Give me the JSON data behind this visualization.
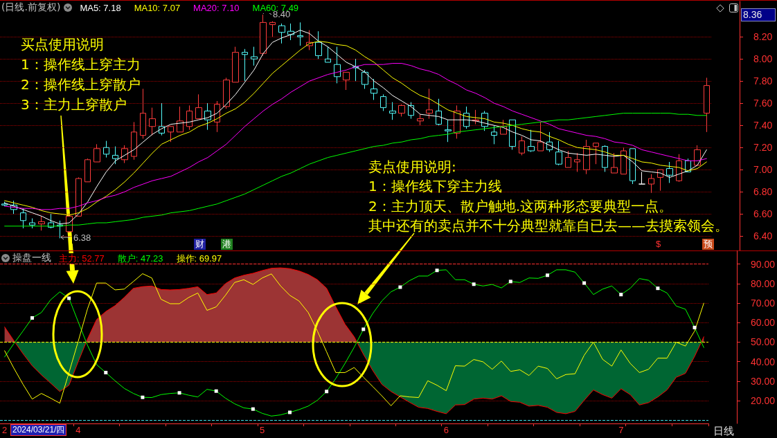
{
  "chart_data": [
    {
      "type": "candlestick",
      "title": "(日线.前复权)",
      "categories": [
        "2",
        null,
        null,
        null,
        null,
        null,
        null,
        null,
        "4",
        null,
        null,
        null,
        null,
        null,
        null,
        null,
        null,
        null,
        null,
        null,
        null,
        null,
        null,
        null,
        null,
        null,
        null,
        null,
        "5",
        null,
        null,
        null,
        null,
        null,
        null,
        null,
        null,
        null,
        null,
        null,
        null,
        null,
        null,
        null,
        null,
        null,
        null,
        null,
        "6",
        null,
        null,
        null,
        null,
        null,
        null,
        null,
        null,
        null,
        null,
        null,
        null,
        null,
        null,
        null,
        null,
        null,
        null,
        "7",
        null,
        null,
        null,
        null,
        null,
        null,
        null,
        null,
        null
      ],
      "ohlc": [
        [
          6.69,
          6.71,
          6.67,
          6.68
        ],
        [
          6.68,
          6.72,
          6.6,
          6.64
        ],
        [
          6.61,
          6.65,
          6.47,
          6.54
        ],
        [
          6.52,
          6.56,
          6.47,
          6.5
        ],
        [
          6.51,
          6.58,
          6.45,
          6.53
        ],
        [
          6.52,
          6.6,
          6.47,
          6.48
        ],
        [
          6.5,
          6.54,
          6.38,
          6.49
        ],
        [
          6.44,
          6.59,
          6.43,
          6.58
        ],
        [
          6.58,
          6.93,
          6.58,
          6.92
        ],
        [
          6.89,
          7.1,
          6.89,
          7.09
        ],
        [
          7.07,
          7.23,
          7.07,
          7.19
        ],
        [
          7.2,
          7.26,
          7.11,
          7.14
        ],
        [
          7.13,
          7.21,
          7.05,
          7.1
        ],
        [
          7.09,
          7.22,
          7.06,
          7.19
        ],
        [
          7.12,
          7.43,
          7.09,
          7.34
        ],
        [
          7.31,
          7.73,
          7.28,
          7.51
        ],
        [
          7.39,
          7.56,
          7.31,
          7.46
        ],
        [
          7.39,
          7.6,
          7.31,
          7.33
        ],
        [
          7.34,
          7.39,
          7.25,
          7.39
        ],
        [
          7.34,
          7.57,
          7.34,
          7.44
        ],
        [
          7.39,
          7.58,
          7.36,
          7.53
        ],
        [
          7.46,
          7.68,
          7.46,
          7.56
        ],
        [
          7.53,
          7.6,
          7.36,
          7.45
        ],
        [
          7.43,
          7.62,
          7.34,
          7.59
        ],
        [
          7.57,
          7.83,
          7.55,
          7.81
        ],
        [
          7.79,
          8.11,
          7.79,
          8.06
        ],
        [
          8.06,
          8.09,
          7.8,
          8.04
        ],
        [
          8.02,
          8.11,
          7.94,
          8.0
        ],
        [
          8.05,
          8.4,
          8.03,
          8.33
        ],
        [
          8.31,
          8.34,
          8.2,
          8.33
        ],
        [
          8.3,
          8.32,
          8.14,
          8.24
        ],
        [
          8.25,
          8.32,
          8.17,
          8.22
        ],
        [
          8.21,
          8.33,
          8.12,
          8.2
        ],
        [
          8.12,
          8.26,
          8.08,
          8.15
        ],
        [
          8.15,
          8.25,
          8.0,
          8.03
        ],
        [
          8.0,
          8.11,
          7.97,
          7.97
        ],
        [
          7.95,
          8.11,
          7.78,
          7.84
        ],
        [
          7.81,
          7.88,
          7.72,
          7.88
        ],
        [
          7.93,
          8.0,
          7.8,
          7.92
        ],
        [
          7.88,
          7.9,
          7.73,
          7.77
        ],
        [
          7.73,
          7.82,
          7.63,
          7.69
        ],
        [
          7.66,
          7.68,
          7.53,
          7.56
        ],
        [
          7.53,
          7.61,
          7.45,
          7.51
        ],
        [
          7.51,
          7.59,
          7.48,
          7.58
        ],
        [
          7.58,
          7.61,
          7.46,
          7.49
        ],
        [
          7.44,
          7.5,
          7.4,
          7.46
        ],
        [
          7.51,
          7.73,
          7.46,
          7.54
        ],
        [
          7.53,
          7.64,
          7.4,
          7.41
        ],
        [
          7.36,
          7.45,
          7.25,
          7.35
        ],
        [
          7.33,
          7.58,
          7.28,
          7.53
        ],
        [
          7.51,
          7.57,
          7.37,
          7.39
        ],
        [
          7.44,
          7.54,
          7.41,
          7.45
        ],
        [
          7.51,
          7.53,
          7.35,
          7.39
        ],
        [
          7.34,
          7.4,
          7.23,
          7.31
        ],
        [
          7.32,
          7.45,
          7.32,
          7.39
        ],
        [
          7.45,
          7.45,
          7.18,
          7.21
        ],
        [
          7.15,
          7.3,
          7.13,
          7.26
        ],
        [
          7.21,
          7.36,
          7.16,
          7.17
        ],
        [
          7.17,
          7.43,
          7.17,
          7.25
        ],
        [
          7.25,
          7.34,
          7.16,
          7.18
        ],
        [
          7.16,
          7.26,
          7.04,
          7.05
        ],
        [
          7.02,
          7.17,
          7.02,
          7.11
        ],
        [
          7.07,
          7.15,
          6.98,
          7.09
        ],
        [
          7.0,
          7.27,
          6.96,
          7.21
        ],
        [
          7.21,
          7.24,
          7.05,
          7.24
        ],
        [
          7.21,
          7.22,
          6.98,
          7.02
        ],
        [
          6.97,
          7.15,
          6.97,
          7.02
        ],
        [
          6.96,
          7.2,
          6.96,
          7.17
        ],
        [
          7.19,
          7.19,
          6.87,
          6.9
        ],
        [
          6.87,
          6.98,
          6.87,
          6.87
        ],
        [
          6.87,
          6.96,
          6.79,
          6.92
        ],
        [
          6.93,
          7.0,
          6.81,
          7.0
        ],
        [
          7.01,
          7.07,
          6.88,
          6.95
        ],
        [
          6.9,
          7.14,
          6.89,
          7.08
        ],
        [
          7.08,
          7.1,
          6.98,
          6.98
        ],
        [
          7.04,
          7.22,
          7.04,
          7.18
        ],
        [
          7.51,
          7.83,
          7.34,
          7.76
        ]
      ],
      "colors": [
        "#54fcfc",
        "#54fcfc",
        "#54fcfc",
        "#54fcfc",
        "#ff3c3c",
        "#54fcfc",
        "#54fcfc",
        "#ff3c3c",
        "#ff3c3c",
        "#ff3c3c",
        "#ff3c3c",
        "#54fcfc",
        "#54fcfc",
        "#ff3c3c",
        "#ff3c3c",
        "#ff3c3c",
        "#ff3c3c",
        "#54fcfc",
        "#ff3c3c",
        "#ff3c3c",
        "#ff3c3c",
        "#ff3c3c",
        "#54fcfc",
        "#ff3c3c",
        "#ff3c3c",
        "#ff3c3c",
        "#54fcfc",
        "#54fcfc",
        "#ff3c3c",
        "#ff3c3c",
        "#54fcfc",
        "#54fcfc",
        "#54fcfc",
        "#ff3c3c",
        "#54fcfc",
        "#54fcfc",
        "#54fcfc",
        "#ff3c3c",
        "#54fcfc",
        "#54fcfc",
        "#54fcfc",
        "#54fcfc",
        "#54fcfc",
        "#ff3c3c",
        "#54fcfc",
        "#ff3c3c",
        "#ff3c3c",
        "#54fcfc",
        "#54fcfc",
        "#ff3c3c",
        "#54fcfc",
        "#ff3c3c",
        "#54fcfc",
        "#54fcfc",
        "#ff3c3c",
        "#54fcfc",
        "#ff3c3c",
        "#54fcfc",
        "#ff3c3c",
        "#54fcfc",
        "#54fcfc",
        "#ff3c3c",
        "#ff3c3c",
        "#ff3c3c",
        "#ff3c3c",
        "#54fcfc",
        "#ff3c3c",
        "#ff3c3c",
        "#54fcfc",
        "#ffffff",
        "#ff3c3c",
        "#ff3c3c",
        "#54fcfc",
        "#ff3c3c",
        "#54fcfc",
        "#ff3c3c",
        "#ff3c3c"
      ],
      "series": [
        {
          "name": "MA5: 7.18",
          "type": "line",
          "color": "#ffffff",
          "values": [
            6.7,
            6.67,
            6.64,
            6.61,
            6.58,
            6.54,
            6.51,
            6.52,
            6.6,
            6.71,
            6.85,
            6.98,
            7.08,
            7.13,
            7.18,
            7.25,
            7.32,
            7.37,
            7.41,
            7.42,
            7.43,
            7.45,
            7.47,
            7.51,
            7.59,
            7.68,
            7.79,
            7.9,
            8.05,
            8.15,
            8.19,
            8.22,
            8.26,
            8.23,
            8.16,
            8.11,
            8.04,
            7.97,
            7.93,
            7.88,
            7.8,
            7.74,
            7.67,
            7.62,
            7.57,
            7.5,
            7.49,
            7.48,
            7.45,
            7.45,
            7.45,
            7.44,
            7.42,
            7.4,
            7.38,
            7.34,
            7.31,
            7.27,
            7.26,
            7.22,
            7.18,
            7.15,
            7.14,
            7.13,
            7.14,
            7.13,
            7.12,
            7.13,
            7.07,
            6.99,
            6.98,
            6.97,
            6.93,
            6.96,
            6.99,
            7.04,
            7.18
          ]
        },
        {
          "name": "MA10: 7.07",
          "type": "line",
          "color": "#ffff00",
          "values": [
            6.72,
            6.7,
            6.68,
            6.66,
            6.63,
            6.61,
            6.6,
            6.59,
            6.61,
            6.65,
            6.71,
            6.76,
            6.82,
            6.89,
            6.97,
            7.06,
            7.15,
            7.23,
            7.27,
            7.31,
            7.34,
            7.39,
            7.42,
            7.46,
            7.51,
            7.55,
            7.61,
            7.69,
            7.78,
            7.87,
            7.94,
            8.01,
            8.08,
            8.14,
            8.16,
            8.15,
            8.13,
            8.12,
            8.08,
            8.02,
            7.97,
            7.9,
            7.83,
            7.78,
            7.72,
            7.67,
            7.64,
            7.59,
            7.54,
            7.51,
            7.48,
            7.47,
            7.46,
            7.43,
            7.42,
            7.4,
            7.37,
            7.35,
            7.34,
            7.3,
            7.27,
            7.23,
            7.2,
            7.19,
            7.18,
            7.16,
            7.13,
            7.13,
            7.1,
            7.07,
            7.06,
            7.04,
            7.03,
            7.02,
            6.99,
            7.01,
            7.07
          ]
        },
        {
          "name": "MA20: 7.10",
          "type": "line",
          "color": "#ff00ff",
          "values": [
            6.67,
            6.66,
            6.65,
            6.65,
            6.64,
            6.64,
            6.65,
            6.65,
            6.67,
            6.7,
            6.72,
            6.75,
            6.77,
            6.8,
            6.84,
            6.87,
            6.9,
            6.92,
            6.94,
            6.98,
            7.02,
            7.07,
            7.11,
            7.17,
            7.23,
            7.31,
            7.39,
            7.46,
            7.53,
            7.59,
            7.64,
            7.7,
            7.75,
            7.8,
            7.83,
            7.86,
            7.88,
            7.9,
            7.93,
            7.95,
            7.95,
            7.95,
            7.96,
            7.96,
            7.94,
            7.91,
            7.89,
            7.86,
            7.81,
            7.77,
            7.72,
            7.69,
            7.65,
            7.6,
            7.57,
            7.53,
            7.5,
            7.47,
            7.44,
            7.41,
            7.37,
            7.35,
            7.33,
            7.31,
            7.3,
            7.28,
            7.25,
            7.24,
            7.22,
            7.18,
            7.16,
            7.14,
            7.12,
            7.1,
            7.08,
            7.08,
            7.1
          ]
        },
        {
          "name": "MA60: 7.49",
          "type": "line",
          "color": "#00ff00",
          "values": [
            6.49,
            6.49,
            6.49,
            6.49,
            6.49,
            6.49,
            6.49,
            6.5,
            6.5,
            6.51,
            6.52,
            6.52,
            6.53,
            6.54,
            6.55,
            6.57,
            6.58,
            6.59,
            6.61,
            6.62,
            6.63,
            6.65,
            6.67,
            6.69,
            6.72,
            6.75,
            6.78,
            6.82,
            6.86,
            6.9,
            6.94,
            6.97,
            7.01,
            7.05,
            7.08,
            7.11,
            7.13,
            7.15,
            7.17,
            7.19,
            7.21,
            7.22,
            7.24,
            7.25,
            7.27,
            7.28,
            7.3,
            7.31,
            7.32,
            7.34,
            7.35,
            7.36,
            7.37,
            7.38,
            7.39,
            7.4,
            7.41,
            7.42,
            7.43,
            7.44,
            7.45,
            7.45,
            7.46,
            7.47,
            7.48,
            7.49,
            7.5,
            7.51,
            7.51,
            7.51,
            7.51,
            7.51,
            7.51,
            7.5,
            7.5,
            7.49,
            7.49
          ]
        }
      ],
      "ylim": [
        6.27,
        8.52
      ],
      "yticks": [
        {
          "value": 6.4,
          "label": "6.40"
        },
        {
          "value": 6.6,
          "label": "6.60"
        },
        {
          "value": 6.8,
          "label": "6.80"
        },
        {
          "value": 7.0,
          "label": "7.00"
        },
        {
          "value": 7.2,
          "label": "7.20"
        },
        {
          "value": 7.4,
          "label": "7.40"
        },
        {
          "value": 7.6,
          "label": "7.60"
        },
        {
          "value": 7.8,
          "label": "7.80"
        },
        {
          "value": 8.0,
          "label": "8.00"
        },
        {
          "value": 8.2,
          "label": "8.20"
        }
      ],
      "grid": "y",
      "legend": "top left",
      "tick_labels": "y",
      "annotations": [
        "买点使用说明",
        "1：操作线上穿主力",
        "2：操作线上穿散户",
        "3：主力上穿散户",
        "卖点使用说明:",
        "1：操作线下穿主力线",
        "2：主力顶天、散户触地.这两种形态要典型一点。",
        "其中还有的卖点并不十分典型就靠自已去——去摸索领会。",
        "8.36",
        "财",
        "港",
        "$",
        "预",
        "8.40",
        "6.38"
      ]
    },
    {
      "type": "line",
      "title": "操盘一线",
      "categories": [
        "2",
        null,
        null,
        null,
        null,
        null,
        null,
        null,
        "4",
        null,
        null,
        null,
        null,
        null,
        null,
        null,
        null,
        null,
        null,
        null,
        null,
        null,
        null,
        null,
        null,
        null,
        null,
        null,
        "5",
        null,
        null,
        null,
        null,
        null,
        null,
        null,
        null,
        null,
        null,
        null,
        null,
        null,
        null,
        null,
        null,
        null,
        null,
        null,
        "6",
        null,
        null,
        null,
        null,
        null,
        null,
        null,
        null,
        null,
        null,
        null,
        null,
        null,
        null,
        null,
        null,
        null,
        null,
        "7",
        null,
        null,
        null,
        null,
        null,
        null,
        null,
        null,
        null
      ],
      "series": [
        {
          "name": "主力: 52.77",
          "type": "area",
          "color": "#ff0000",
          "values": [
            57.8,
            50.8,
            44.1,
            37.9,
            33.2,
            29.0,
            24.7,
            27.9,
            40.0,
            51.5,
            61.6,
            65.7,
            68.7,
            72.9,
            77.6,
            78.5,
            78.8,
            77.0,
            76.8,
            77.0,
            77.6,
            78.4,
            74.4,
            75.2,
            80.0,
            82.9,
            84.3,
            85.3,
            86.7,
            87.9,
            88.1,
            87.7,
            86.5,
            84.7,
            82.0,
            77.6,
            68.1,
            59.2,
            52.7,
            43.8,
            35.6,
            28.4,
            24.7,
            21.9,
            19.2,
            16.6,
            16.0,
            14.5,
            13.3,
            17.8,
            18.0,
            20.8,
            21.3,
            20.8,
            22.5,
            19.6,
            19.2,
            17.2,
            17.6,
            16.6,
            14.0,
            13.3,
            14.5,
            20.2,
            25.5,
            23.1,
            21.3,
            26.1,
            23.1,
            17.8,
            19.0,
            21.9,
            25.5,
            32.0,
            34.0,
            42.7,
            52.77
          ]
        },
        {
          "name": "散户: 47.23",
          "color": "#00ff00",
          "values": [
            42.4,
            49.2,
            55.7,
            62.4,
            65.2,
            71.7,
            75.8,
            72.5,
            60.4,
            48.5,
            38.5,
            34.4,
            30.2,
            26.3,
            23.7,
            21.7,
            21.6,
            23.1,
            23.7,
            24.0,
            22.8,
            21.9,
            25.8,
            24.9,
            21.3,
            18.4,
            16.3,
            15.7,
            13.5,
            12.1,
            12.7,
            14.0,
            15.4,
            17.2,
            20.2,
            24.7,
            31.4,
            39.1,
            47.4,
            56.6,
            64.6,
            71.1,
            75.8,
            78.2,
            81.5,
            83.9,
            83.9,
            86.8,
            87.1,
            82.0,
            82.0,
            79.7,
            78.8,
            79.6,
            77.8,
            81.1,
            80.6,
            82.9,
            82.7,
            84.3,
            87.1,
            87.1,
            85.9,
            80.3,
            74.4,
            77.2,
            78.8,
            74.4,
            77.6,
            82.6,
            81.7,
            77.6,
            75.2,
            68.5,
            66.9,
            57.5,
            47.23
          ]
        },
        {
          "name": "操作: 69.97",
          "color": "#ffff00",
          "values": [
            45.6,
            36.7,
            28.4,
            20.8,
            23.7,
            21.3,
            18.7,
            34.4,
            50.4,
            66.9,
            80.3,
            80.3,
            76.8,
            77.2,
            81.1,
            85.1,
            82.9,
            72.0,
            69.7,
            69.7,
            72.9,
            75.2,
            66.3,
            68.1,
            74.0,
            80.6,
            82.0,
            79.6,
            82.9,
            85.0,
            78.8,
            74.0,
            71.1,
            65.2,
            55.7,
            45.0,
            34.4,
            34.4,
            37.0,
            32.0,
            27.3,
            22.5,
            17.4,
            22.5,
            21.9,
            21.6,
            30.2,
            27.9,
            25.1,
            37.9,
            37.7,
            41.1,
            39.9,
            36.1,
            40.3,
            35.0,
            35.8,
            32.9,
            37.7,
            36.5,
            31.2,
            33.4,
            33.8,
            43.3,
            50.0,
            41.2,
            37.7,
            46.0,
            39.1,
            34.4,
            36.1,
            41.8,
            41.8,
            50.0,
            48.0,
            55.7,
            69.97
          ]
        },
        {
          "type": "scatter",
          "color": "#ffffff",
          "marker": "square",
          "values": [
            null,
            null,
            null,
            62.4,
            null,
            null,
            null,
            72.5,
            null,
            null,
            null,
            34.4,
            null,
            null,
            null,
            21.7,
            null,
            null,
            null,
            24.0,
            null,
            null,
            null,
            24.9,
            null,
            null,
            null,
            15.7,
            null,
            null,
            null,
            14.0,
            null,
            null,
            null,
            24.7,
            null,
            null,
            null,
            56.6,
            null,
            null,
            null,
            78.2,
            null,
            null,
            null,
            86.8,
            null,
            null,
            null,
            79.7,
            null,
            null,
            null,
            81.1,
            null,
            null,
            null,
            84.3,
            null,
            null,
            null,
            80.3,
            null,
            null,
            null,
            74.4,
            null,
            null,
            null,
            77.6,
            null,
            null,
            null,
            57.5,
            null
          ]
        }
      ],
      "ylim": [
        8.3,
        97
      ],
      "yticks": [
        {
          "value": 20,
          "label": "20.00"
        },
        {
          "value": 30,
          "label": "30.00"
        },
        {
          "value": 40,
          "label": "40.00"
        },
        {
          "value": 50,
          "label": "50.00"
        },
        {
          "value": 60,
          "label": "60.00"
        },
        {
          "value": 70,
          "label": "70.00"
        },
        {
          "value": 80,
          "label": "80.00"
        },
        {
          "value": 90,
          "label": "90.00"
        }
      ],
      "ref_lines": [
        {
          "axis": "y",
          "value": 50,
          "color": "#ffff00",
          "line_style": "dashed"
        },
        {
          "axis": "y",
          "value": 90,
          "color": "#ff3232",
          "line_style": "dashed"
        },
        {
          "axis": "y",
          "value": 10,
          "color": "#40e0e8",
          "line_style": "dashed"
        }
      ],
      "grid": "y",
      "legend": "top left",
      "annotations": [
        "2024/03/21/四",
        "日线"
      ]
    }
  ]
}
